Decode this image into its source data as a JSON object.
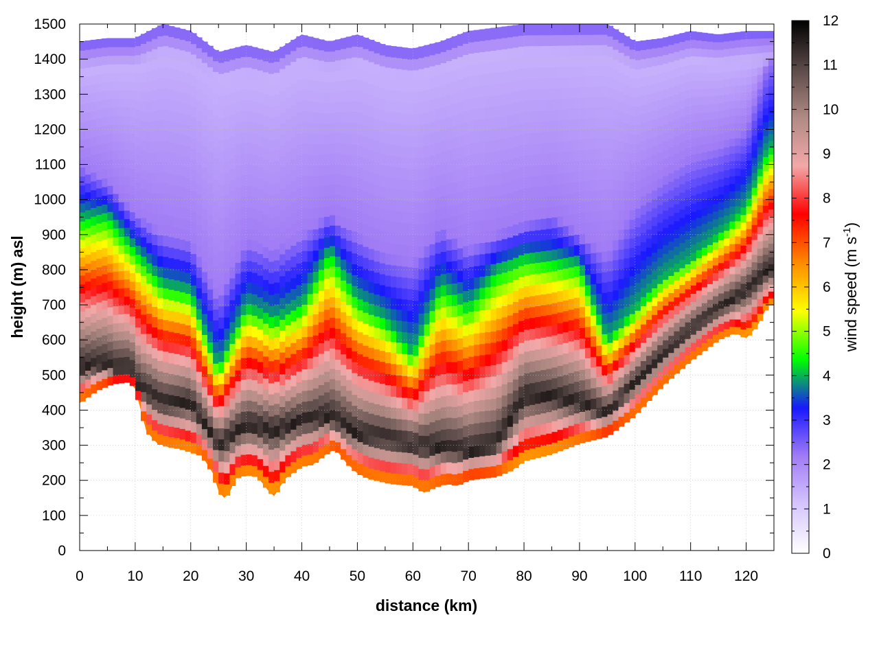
{
  "chart_data": {
    "type": "heatmap",
    "title": "",
    "xlabel": "distance (km)",
    "ylabel": "height (m) asl",
    "xlim": [
      0,
      125
    ],
    "ylim": [
      0,
      1500
    ],
    "x_ticks": [
      0,
      10,
      20,
      30,
      40,
      50,
      60,
      70,
      80,
      90,
      100,
      110,
      120
    ],
    "y_ticks": [
      0,
      100,
      200,
      300,
      400,
      500,
      600,
      700,
      800,
      900,
      1000,
      1100,
      1200,
      1300,
      1400,
      1500
    ],
    "grid": true,
    "colorbar": {
      "label": "wind speed (m s",
      "label_superscript": "-1",
      "label_close": ")",
      "range": [
        0,
        12
      ],
      "ticks": [
        0,
        1,
        2,
        3,
        4,
        5,
        6,
        7,
        8,
        9,
        10,
        11,
        12
      ],
      "colors": [
        "#ffffff",
        "#d6c6ff",
        "#a17cf5",
        "#1818ff",
        "#00ff00",
        "#ffff00",
        "#ff8a00",
        "#ff0000",
        "#f2a8a8",
        "#b08a84",
        "#5a4a48",
        "#000000"
      ]
    },
    "terrain": {
      "distance": [
        0,
        3,
        6,
        9,
        10,
        12,
        14,
        16,
        18,
        20,
        22,
        24,
        25,
        26,
        27,
        28,
        30,
        32,
        34,
        35,
        37,
        40,
        42,
        44,
        46,
        48,
        50,
        52,
        56,
        60,
        62,
        64,
        66,
        68,
        70,
        72,
        75,
        78,
        80,
        85,
        90,
        95,
        98,
        100,
        105,
        110,
        115,
        118,
        120,
        122,
        124
      ],
      "height": [
        420,
        455,
        475,
        480,
        460,
        340,
        305,
        295,
        290,
        280,
        270,
        220,
        170,
        150,
        165,
        205,
        215,
        210,
        170,
        155,
        205,
        240,
        245,
        270,
        290,
        250,
        220,
        205,
        190,
        185,
        165,
        180,
        190,
        185,
        200,
        205,
        210,
        230,
        255,
        275,
        305,
        325,
        360,
        385,
        470,
        540,
        600,
        620,
        605,
        640,
        700
      ]
    },
    "profile_ridges": {
      "distance": [
        0,
        5,
        10,
        15,
        20,
        25,
        30,
        35,
        40,
        45,
        50,
        55,
        60,
        65,
        70,
        75,
        80,
        85,
        90,
        95,
        100,
        105,
        110,
        115,
        120,
        124
      ],
      "height_of_max_wind": [
        520,
        530,
        470,
        420,
        420,
        300,
        360,
        340,
        370,
        380,
        330,
        320,
        300,
        290,
        280,
        300,
        440,
        440,
        420,
        390,
        480,
        560,
        630,
        690,
        740,
        800
      ],
      "height_of_4ms": [
        950,
        960,
        860,
        760,
        740,
        520,
        700,
        660,
        700,
        860,
        720,
        660,
        560,
        760,
        700,
        800,
        840,
        830,
        820,
        600,
        690,
        780,
        830,
        900,
        980,
        1150
      ],
      "height_of_2ms": [
        1100,
        1050,
        960,
        900,
        880,
        720,
        880,
        850,
        900,
        960,
        900,
        840,
        820,
        920,
        860,
        900,
        930,
        960,
        900,
        840,
        980,
        1060,
        1120,
        1150,
        1200,
        1400
      ],
      "top_of_data": [
        1450,
        1460,
        1460,
        1500,
        1480,
        1420,
        1440,
        1420,
        1470,
        1450,
        1470,
        1440,
        1430,
        1450,
        1480,
        1490,
        1500,
        1500,
        1500,
        1500,
        1450,
        1460,
        1480,
        1470,
        1480,
        1480
      ]
    }
  }
}
